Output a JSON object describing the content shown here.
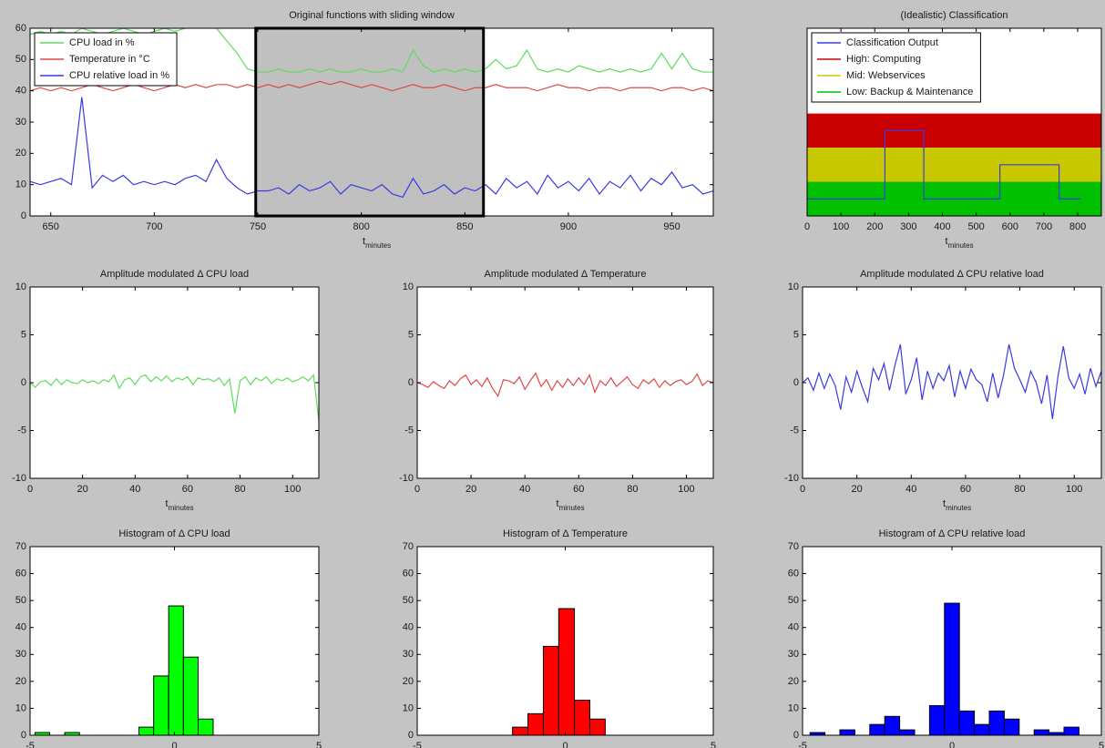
{
  "chart_data": [
    {
      "type": "line",
      "title": "Original functions with sliding window",
      "xlabel": "t",
      "xlabel_sub": "minutes",
      "xlim": [
        640,
        970
      ],
      "xticks": [
        650,
        700,
        750,
        800,
        850,
        900,
        950
      ],
      "ylim": [
        0,
        60
      ],
      "yticks": [
        0,
        10,
        20,
        30,
        40,
        50,
        60
      ],
      "legend": "top-left",
      "window": [
        749,
        859
      ],
      "x": [
        640,
        645,
        650,
        655,
        660,
        665,
        670,
        675,
        680,
        685,
        690,
        695,
        700,
        705,
        710,
        715,
        720,
        725,
        730,
        735,
        740,
        745,
        750,
        755,
        760,
        765,
        770,
        775,
        780,
        785,
        790,
        795,
        800,
        805,
        810,
        815,
        820,
        825,
        830,
        835,
        840,
        845,
        850,
        855,
        860,
        865,
        870,
        875,
        880,
        885,
        890,
        895,
        900,
        905,
        910,
        915,
        920,
        925,
        930,
        935,
        940,
        945,
        950,
        955,
        960,
        965,
        970
      ],
      "series": [
        {
          "name": "CPU load in %",
          "color": "#5fdc5f",
          "values": [
            58,
            59,
            58,
            59,
            58,
            60,
            59,
            58,
            59,
            60,
            59,
            58,
            59,
            60,
            59,
            60,
            61,
            62,
            60,
            56,
            52,
            47,
            46,
            46,
            47,
            46,
            46,
            47,
            46,
            47,
            46,
            46,
            47,
            46,
            46,
            47,
            46,
            53,
            48,
            46,
            47,
            46,
            47,
            46,
            47,
            50,
            47,
            48,
            53,
            47,
            46,
            47,
            46,
            48,
            47,
            46,
            47,
            46,
            47,
            46,
            47,
            52,
            47,
            52,
            47,
            46,
            46
          ]
        },
        {
          "name": "Temperature in °C",
          "color": "#e04848",
          "values": [
            40,
            41,
            40,
            41,
            40,
            41,
            42,
            41,
            40,
            41,
            42,
            41,
            40,
            41,
            42,
            41,
            42,
            41,
            42,
            42,
            41,
            42,
            41,
            42,
            41,
            42,
            41,
            42,
            43,
            42,
            43,
            42,
            41,
            42,
            41,
            40,
            41,
            42,
            41,
            41,
            42,
            41,
            40,
            41,
            41,
            42,
            41,
            41,
            41,
            40,
            41,
            42,
            41,
            41,
            40,
            41,
            41,
            40,
            41,
            41,
            41,
            40,
            41,
            41,
            40,
            41,
            40
          ]
        },
        {
          "name": "CPU relative load in %",
          "color": "#3a3ae0",
          "values": [
            11,
            10,
            11,
            12,
            10,
            38,
            9,
            13,
            11,
            13,
            10,
            11,
            10,
            11,
            10,
            12,
            13,
            11,
            18,
            12,
            9,
            7,
            8,
            8,
            9,
            7,
            10,
            8,
            9,
            11,
            7,
            10,
            9,
            8,
            10,
            7,
            6,
            12,
            7,
            8,
            10,
            7,
            9,
            8,
            10,
            7,
            12,
            9,
            11,
            7,
            13,
            9,
            11,
            8,
            12,
            7,
            11,
            9,
            13,
            8,
            12,
            10,
            14,
            9,
            10,
            7,
            8
          ]
        }
      ]
    },
    {
      "type": "line",
      "title": "(Idealistic) Classification",
      "xlabel": "t",
      "xlabel_sub": "minutes",
      "xlim": [
        0,
        870
      ],
      "xticks": [
        0,
        100,
        200,
        300,
        400,
        500,
        600,
        700,
        800
      ],
      "ylim": [
        0,
        5.5
      ],
      "legend": "top-left",
      "bands": [
        {
          "name": "High: Computing",
          "color": "#c80000",
          "from": 2,
          "to": 3
        },
        {
          "name": "Mid: Webservices",
          "color": "#c8c800",
          "from": 1,
          "to": 2
        },
        {
          "name": "Low: Backup & Maintenance",
          "color": "#00c000",
          "from": 0,
          "to": 1
        }
      ],
      "x": [
        0,
        230,
        230,
        345,
        345,
        570,
        570,
        745,
        745,
        810
      ],
      "series": [
        {
          "name": "Classification Output",
          "color": "#3a3ae0",
          "values": [
            0.5,
            0.5,
            2.5,
            2.5,
            0.5,
            0.5,
            1.5,
            1.5,
            0.5,
            0.5
          ]
        }
      ]
    },
    {
      "type": "line",
      "title": "Amplitude modulated Δ CPU load",
      "xlabel": "t",
      "xlabel_sub": "minutes",
      "xlim": [
        0,
        110
      ],
      "xticks": [
        0,
        20,
        40,
        60,
        80,
        100
      ],
      "ylim": [
        -10,
        10
      ],
      "yticks": [
        -10,
        -5,
        0,
        5,
        10
      ],
      "x": [
        0,
        2,
        4,
        6,
        8,
        10,
        12,
        14,
        16,
        18,
        20,
        22,
        24,
        26,
        28,
        30,
        32,
        34,
        36,
        38,
        40,
        42,
        44,
        46,
        48,
        50,
        52,
        54,
        56,
        58,
        60,
        62,
        64,
        66,
        68,
        70,
        72,
        74,
        76,
        78,
        80,
        82,
        84,
        86,
        88,
        90,
        92,
        94,
        96,
        98,
        100,
        102,
        104,
        106,
        108,
        110
      ],
      "series": [
        {
          "color": "#5fdc5f",
          "values": [
            0,
            -0.5,
            0.1,
            0.2,
            -0.3,
            0.4,
            -0.2,
            0.3,
            0,
            -0.1,
            0.3,
            0,
            0.2,
            -0.1,
            0.3,
            0.1,
            0.8,
            -0.6,
            0.3,
            0.5,
            -0.2,
            0.6,
            0.8,
            0.1,
            0.6,
            0.2,
            0.7,
            0.1,
            0.5,
            0.3,
            0.6,
            -0.2,
            0.5,
            0.3,
            0.4,
            0.1,
            0.5,
            -0.3,
            0.4,
            -3.2,
            0.2,
            0.6,
            -0.2,
            0.5,
            0.2,
            0.6,
            -0.1,
            0.4,
            0.2,
            0.5,
            0.1,
            0.3,
            0.6,
            0.2,
            0.8,
            -4
          ]
        }
      ]
    },
    {
      "type": "line",
      "title": "Amplitude modulated Δ Temperature",
      "xlabel": "t",
      "xlabel_sub": "minutes",
      "xlim": [
        0,
        110
      ],
      "xticks": [
        0,
        20,
        40,
        60,
        80,
        100
      ],
      "ylim": [
        -10,
        10
      ],
      "yticks": [
        -10,
        -5,
        0,
        5,
        10
      ],
      "x": [
        0,
        2,
        4,
        6,
        8,
        10,
        12,
        14,
        16,
        18,
        20,
        22,
        24,
        26,
        28,
        30,
        32,
        34,
        36,
        38,
        40,
        42,
        44,
        46,
        48,
        50,
        52,
        54,
        56,
        58,
        60,
        62,
        64,
        66,
        68,
        70,
        72,
        74,
        76,
        78,
        80,
        82,
        84,
        86,
        88,
        90,
        92,
        94,
        96,
        98,
        100,
        102,
        104,
        106,
        108,
        110
      ],
      "series": [
        {
          "color": "#e04848",
          "values": [
            0,
            -0.2,
            -0.5,
            0.1,
            -0.3,
            -0.6,
            0.2,
            -0.3,
            0.4,
            0.8,
            -0.2,
            0.3,
            -0.4,
            0.5,
            -0.6,
            -1.4,
            0.3,
            0.2,
            -0.1,
            0.6,
            -0.7,
            0.2,
            1.0,
            -0.4,
            0.3,
            -0.8,
            0.2,
            -0.5,
            0.4,
            -0.3,
            0.5,
            -0.2,
            0.8,
            -1.0,
            0.2,
            -0.3,
            0.5,
            -0.4,
            0.1,
            0.6,
            -0.2,
            -0.6,
            0.3,
            -0.1,
            0.4,
            -0.5,
            0.2,
            -0.3,
            0.1,
            0.3,
            -0.2,
            0.1,
            0.9,
            -0.3,
            0.2,
            0
          ]
        }
      ]
    },
    {
      "type": "line",
      "title": "Amplitude modulated Δ CPU relative load",
      "xlabel": "t",
      "xlabel_sub": "minutes",
      "xlim": [
        0,
        110
      ],
      "xticks": [
        0,
        20,
        40,
        60,
        80,
        100
      ],
      "ylim": [
        -10,
        10
      ],
      "yticks": [
        -10,
        -5,
        0,
        5,
        10
      ],
      "x": [
        0,
        2,
        4,
        6,
        8,
        10,
        12,
        14,
        16,
        18,
        20,
        22,
        24,
        26,
        28,
        30,
        32,
        34,
        36,
        38,
        40,
        42,
        44,
        46,
        48,
        50,
        52,
        54,
        56,
        58,
        60,
        62,
        64,
        66,
        68,
        70,
        72,
        74,
        76,
        78,
        80,
        82,
        84,
        86,
        88,
        90,
        92,
        94,
        96,
        98,
        100,
        102,
        104,
        106,
        108,
        110
      ],
      "series": [
        {
          "color": "#3a3ae0",
          "values": [
            0,
            0.5,
            -0.8,
            1.0,
            -0.6,
            0.9,
            -0.3,
            -2.8,
            0.6,
            -1.0,
            1.2,
            -0.5,
            -2.0,
            1.5,
            0.3,
            2.0,
            -0.8,
            1.8,
            4.0,
            -1.2,
            0.3,
            2.6,
            -1.8,
            1.2,
            -0.6,
            1.0,
            0.2,
            1.8,
            -1.5,
            1.2,
            -0.6,
            1.4,
            0.3,
            -0.2,
            -2.0,
            1.0,
            -1.6,
            0.8,
            4.0,
            1.5,
            0.3,
            -1.0,
            1.2,
            0,
            -2.2,
            0.8,
            -3.8,
            0.6,
            3.8,
            0.5,
            -0.6,
            0.9,
            -1.2,
            1.5,
            -0.4,
            1.2
          ]
        }
      ]
    },
    {
      "type": "histogram",
      "title": "Histogram of Δ CPU load",
      "color": "#00ff00",
      "xlim": [
        -5,
        5
      ],
      "xticks": [
        -5,
        0,
        5
      ],
      "ylim": [
        0,
        70
      ],
      "yticks": [
        0,
        10,
        20,
        30,
        40,
        50,
        60,
        70
      ],
      "bins": [
        -4.83,
        -4.32,
        -3.8,
        -3.29,
        -2.77,
        -2.26,
        -1.75,
        -1.23,
        -0.72,
        -0.2,
        0.31,
        0.82,
        1.34
      ],
      "values": [
        1,
        0,
        1,
        0,
        0,
        0,
        0,
        3,
        22,
        48,
        29,
        6
      ]
    },
    {
      "type": "histogram",
      "title": "Histogram of Δ Temperature",
      "color": "#ff0000",
      "xlim": [
        -5,
        5
      ],
      "xticks": [
        -5,
        0,
        5
      ],
      "ylim": [
        0,
        70
      ],
      "yticks": [
        0,
        10,
        20,
        30,
        40,
        50,
        60,
        70
      ],
      "bins": [
        -1.78,
        -1.26,
        -0.74,
        -0.22,
        0.31,
        0.83,
        1.35
      ],
      "values": [
        3,
        8,
        33,
        47,
        13,
        6
      ]
    },
    {
      "type": "histogram",
      "title": "Histogram of Δ CPU relative load",
      "color": "#0000ff",
      "xlim": [
        -5,
        5
      ],
      "xticks": [
        -5,
        0,
        5
      ],
      "ylim": [
        0,
        70
      ],
      "yticks": [
        0,
        10,
        20,
        30,
        40,
        50,
        60,
        70
      ],
      "bins": [
        -4.75,
        -4.25,
        -3.75,
        -3.25,
        -2.75,
        -2.25,
        -1.75,
        -1.25,
        -0.75,
        -0.25,
        0.25,
        0.75,
        1.25,
        1.75,
        2.25,
        2.75,
        3.25,
        3.75,
        4.25
      ],
      "values": [
        1,
        0,
        2,
        0,
        4,
        7,
        2,
        0,
        11,
        49,
        9,
        4,
        9,
        6,
        0,
        2,
        1,
        3
      ]
    }
  ]
}
